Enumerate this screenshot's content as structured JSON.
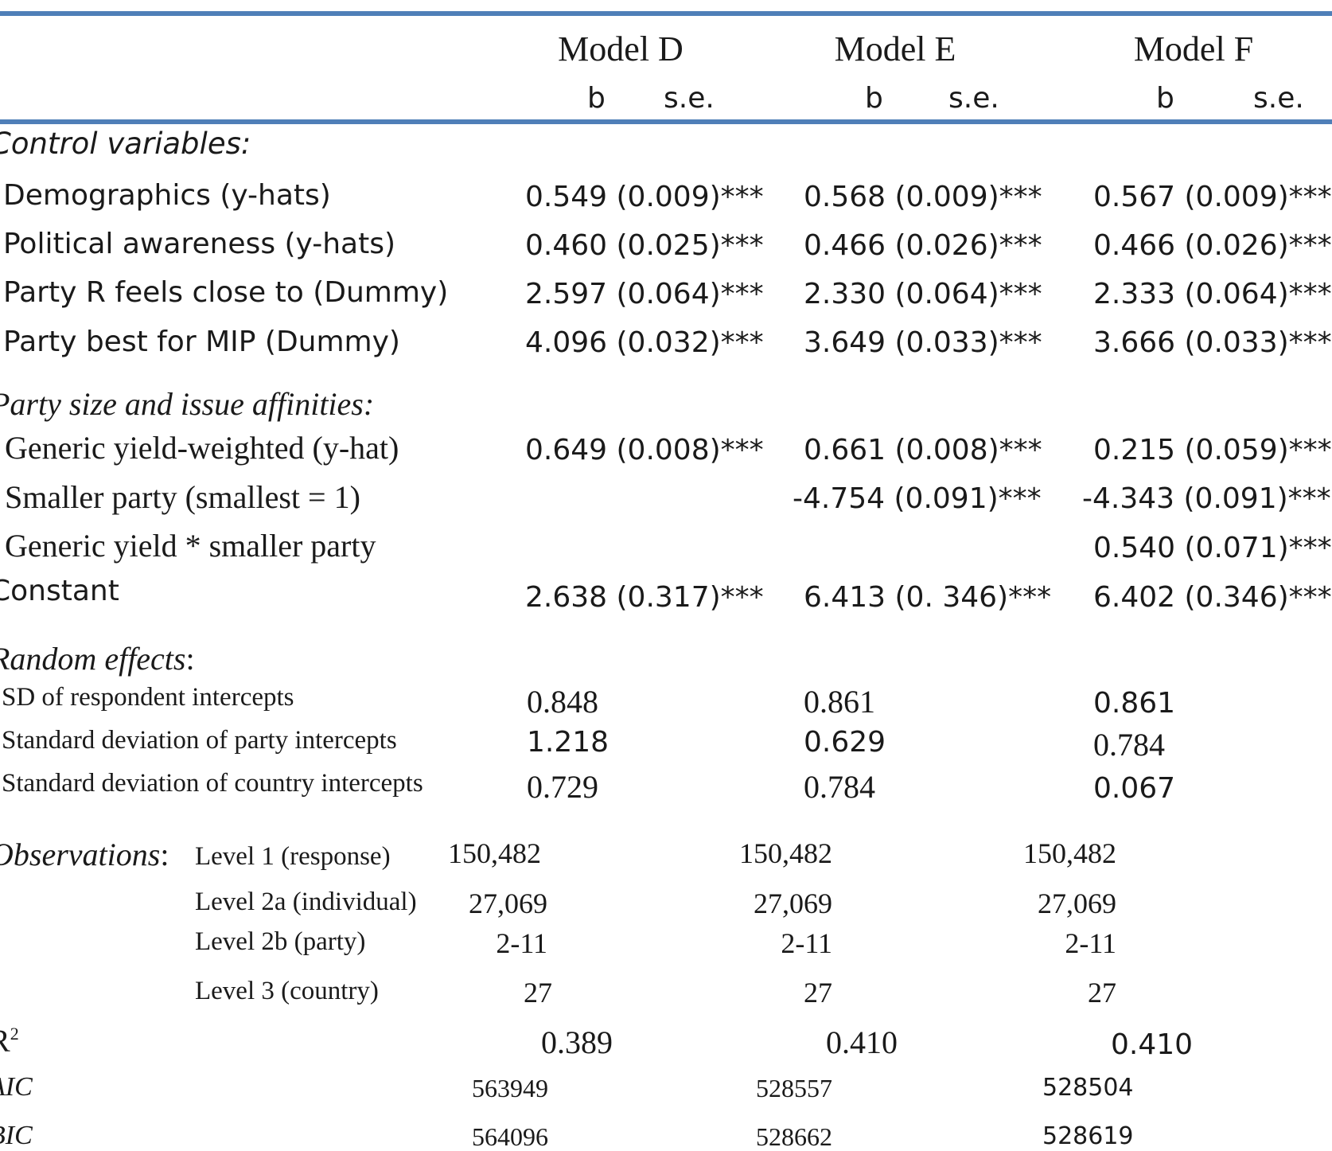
{
  "header": {
    "models": [
      "Model D",
      "Model E",
      "Model F"
    ],
    "coef_label": "b",
    "se_label": "s.e."
  },
  "sections": {
    "controls": "Control variables:",
    "party": "Party size and issue affinities:",
    "random": "Random effects",
    "random_colon": ":",
    "observations": "Observations",
    "obs_colon": ":"
  },
  "rows": [
    {
      "label": "Demographics (y-hats)",
      "values": [
        "0.549 (0.009)***",
        "0.568 (0.009)***",
        "0.567 (0.009)***"
      ]
    },
    {
      "label": "Political awareness (y-hats)",
      "values": [
        "0.460 (0.025)***",
        "0.466 (0.026)***",
        "0.466 (0.026)***"
      ]
    },
    {
      "label": "Party R feels close to (Dummy)",
      "values": [
        "2.597 (0.064)***",
        "2.330 (0.064)***",
        "2.333 (0.064)***"
      ]
    },
    {
      "label": "Party best for MIP (Dummy)",
      "values": [
        "4.096 (0.032)***",
        "3.649 (0.033)***",
        "3.666 (0.033)***"
      ]
    },
    {
      "label": "Generic yield-weighted (y-hat)",
      "values": [
        "0.649 (0.008)***",
        "0.661 (0.008)***",
        "0.215 (0.059)***"
      ]
    },
    {
      "label": "Smaller party (smallest = 1)",
      "values": [
        "",
        "-4.754 (0.091)***",
        "-4.343 (0.091)***"
      ]
    },
    {
      "label": "Generic yield * smaller party",
      "values": [
        "",
        "",
        "0.540 (0.071)***"
      ]
    },
    {
      "label": "Constant",
      "values": [
        "2.638 (0.317)***",
        "6.413 (0. 346)***",
        "6.402 (0.346)***"
      ]
    }
  ],
  "random_effects": [
    {
      "label": "SD of respondent intercepts",
      "values": [
        "0.848",
        "0.861",
        "0.861"
      ]
    },
    {
      "label": "Standard deviation of party intercepts",
      "values": [
        "1.218",
        "0.629",
        "0.784"
      ]
    },
    {
      "label": "Standard deviation of country intercepts",
      "values": [
        "0.729",
        "0.784",
        "0.067"
      ]
    }
  ],
  "observations": [
    {
      "label": "Level 1 (response)",
      "values": [
        "150,482",
        "150,482",
        "150,482"
      ]
    },
    {
      "label": "Level 2a (individual)",
      "values": [
        "27,069",
        "27,069",
        "27,069"
      ]
    },
    {
      "label": "Level 2b (party)",
      "values": [
        "2-11",
        "2-11",
        "2-11"
      ]
    },
    {
      "label": "Level 3 (country)",
      "values": [
        "27",
        "27",
        "27"
      ]
    }
  ],
  "fit": {
    "r2_label": "R",
    "r2_sup": "2",
    "r2_values": [
      "0.389",
      "0.410",
      "0.410"
    ],
    "aic_label": "AIC",
    "aic_values": [
      "563949",
      "528557",
      "528504"
    ],
    "bic_label": "BIC",
    "bic_values": [
      "564096",
      "528662",
      "528619"
    ]
  },
  "colors": {
    "rule": "#4f7fb8",
    "text": "#1a1a1a"
  }
}
